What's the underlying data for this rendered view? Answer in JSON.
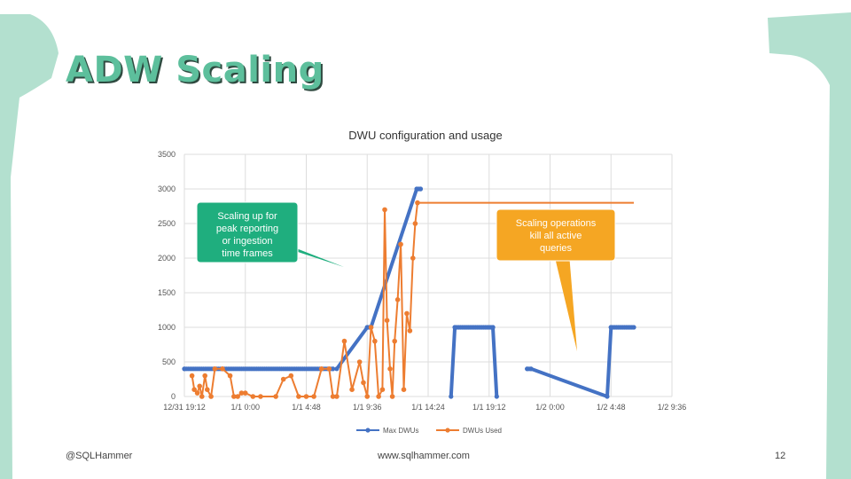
{
  "slide": {
    "title": "ADW Scaling",
    "footer_left": "@SQLHammer",
    "footer_center": "www.sqlhammer.com",
    "page_number": "12"
  },
  "colors": {
    "title": "#5dbf9c",
    "accent_frame": "#b3e0cf",
    "max_series": "#4472c4",
    "used_series": "#ed7d31",
    "callout_green": "#1fae7e",
    "callout_orange": "#f5a623"
  },
  "chart_data": {
    "type": "line",
    "title": "DWU configuration and usage",
    "xlabel": "",
    "ylabel": "",
    "ylim": [
      0,
      3500
    ],
    "yticks": [
      0,
      500,
      1000,
      1500,
      2000,
      2500,
      3000,
      3500
    ],
    "xticks": [
      "12/31 19:12",
      "1/1 0:00",
      "1/1 4:48",
      "1/1 9:36",
      "1/1 14:24",
      "1/1 19:12",
      "1/2 0:00",
      "1/2 4:48",
      "1/2 9:36"
    ],
    "grid": true,
    "legend_position": "bottom",
    "series": [
      {
        "name": "Max DWUs",
        "x": [
          0,
          19.5,
          20,
          24,
          24.5,
          30.5,
          31,
          35,
          35.5,
          40.5,
          41,
          45,
          45.5,
          55.5,
          56
        ],
        "y": [
          400,
          400,
          400,
          1000,
          1000,
          3000,
          3000,
          0,
          1000,
          1000,
          0,
          400,
          400,
          0,
          1000
        ],
        "segments": [
          [
            0,
            1
          ],
          [
            2,
            3,
            4,
            5,
            6
          ],
          [
            7,
            8,
            9,
            10
          ],
          [
            11,
            12,
            13,
            14
          ]
        ],
        "x_end": 59
      },
      {
        "name": "DWUs Used",
        "x": [
          1,
          1.3,
          1.7,
          2,
          2.3,
          2.7,
          3,
          3.5,
          4,
          5,
          6,
          6.5,
          7,
          7.5,
          8,
          9,
          10,
          12,
          13,
          14,
          15,
          16,
          17,
          18,
          19,
          19.5,
          20,
          21,
          22,
          23,
          23.5,
          24,
          24.5,
          25,
          25.5,
          26,
          26.3,
          26.6,
          27,
          27.3,
          27.6,
          28,
          28.4,
          28.8,
          29.2,
          29.6,
          30,
          30.3,
          30.6
        ],
        "y": [
          300,
          100,
          50,
          150,
          0,
          300,
          100,
          0,
          400,
          400,
          300,
          0,
          0,
          50,
          50,
          0,
          0,
          0,
          250,
          300,
          0,
          0,
          0,
          400,
          400,
          0,
          0,
          800,
          100,
          500,
          200,
          0,
          1000,
          800,
          0,
          100,
          2700,
          1100,
          400,
          0,
          800,
          1400,
          2200,
          100,
          1200,
          950,
          2000,
          2500,
          2800
        ],
        "x_end": 59
      }
    ],
    "annotations": [
      {
        "text_lines": [
          "Scaling up for",
          "peak reporting",
          "or ingestion",
          "time frames"
        ],
        "style": "green"
      },
      {
        "text_lines": [
          "Scaling operations",
          "kill all active",
          "queries"
        ],
        "style": "orange"
      }
    ]
  }
}
